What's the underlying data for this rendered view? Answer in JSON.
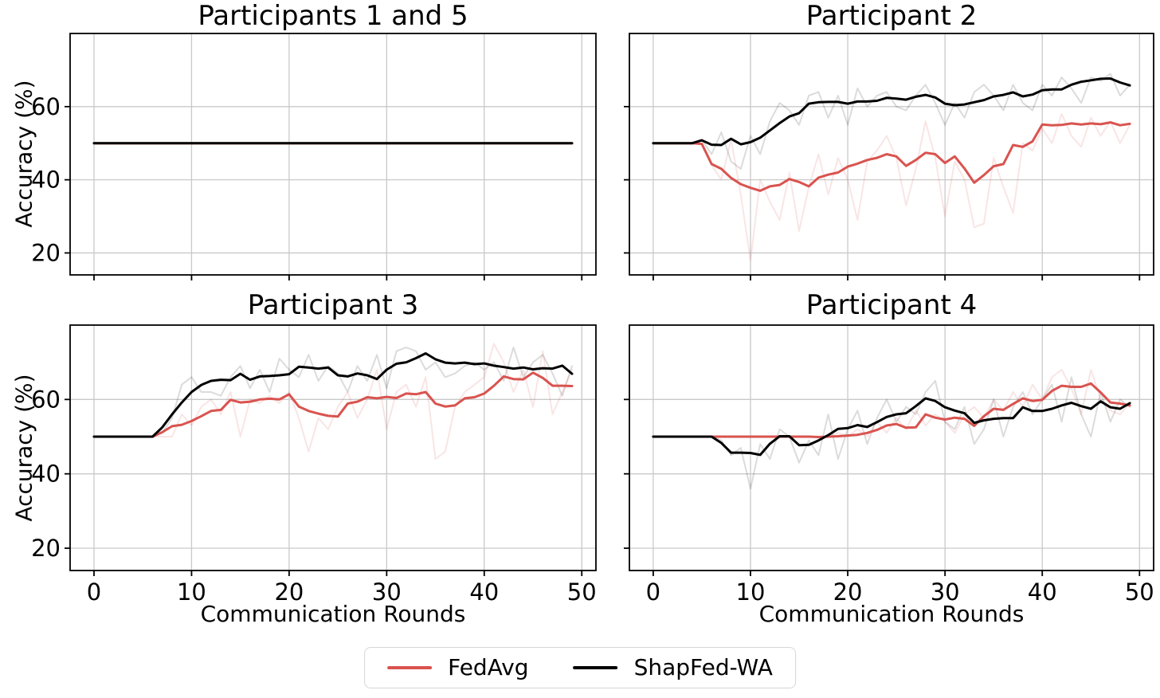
{
  "figure": {
    "background": "#ffffff"
  },
  "style": {
    "grid_color": "#c9c9c9",
    "spine_color": "#000000",
    "tick_color": "#000000",
    "text_color": "#000000",
    "fedavg_color": "#d9534f",
    "shapfed_color": "#000000"
  },
  "axes": {
    "ylabel": "Accuracy (%)",
    "xlabel": "Communication Rounds",
    "xticks": [
      0,
      10,
      20,
      30,
      40,
      50
    ],
    "yticks": [
      20,
      40,
      60
    ],
    "xlim": [
      -2.45,
      51.45
    ],
    "ylim": [
      14,
      80
    ],
    "grid": true
  },
  "legend": {
    "position": "lower center",
    "items": [
      {
        "label": "FedAvg",
        "color": "#d9534f"
      },
      {
        "label": "ShapFed-WA",
        "color": "#000000"
      }
    ]
  },
  "chart_data": [
    {
      "type": "line",
      "title": "Participants 1 and 5",
      "show_x_tick_labels": false,
      "show_y_tick_labels": true,
      "rounds": [
        0,
        1,
        2,
        3,
        4,
        5,
        6,
        7,
        8,
        9,
        10,
        11,
        12,
        13,
        14,
        15,
        16,
        17,
        18,
        19,
        20,
        21,
        22,
        23,
        24,
        25,
        26,
        27,
        28,
        29,
        30,
        31,
        32,
        33,
        34,
        35,
        36,
        37,
        38,
        39,
        40,
        41,
        42,
        43,
        44,
        45,
        46,
        47,
        48,
        49
      ],
      "series": [
        {
          "name": "FedAvg",
          "color": "#d9534f",
          "alpha": 1,
          "width": 3,
          "values": [
            50,
            50,
            50,
            50,
            50,
            50,
            50,
            50,
            50,
            50,
            50,
            50,
            50,
            50,
            50,
            50,
            50,
            50,
            50,
            50,
            50,
            50,
            50,
            50,
            50,
            50,
            50,
            50,
            50,
            50,
            50,
            50,
            50,
            50,
            50,
            50,
            50,
            50,
            50,
            50,
            50,
            50,
            50,
            50,
            50,
            50,
            50,
            50,
            50,
            50
          ]
        },
        {
          "name": "ShapFed-WA",
          "color": "#000000",
          "alpha": 1,
          "width": 3,
          "values": [
            50,
            50,
            50,
            50,
            50,
            50,
            50,
            50,
            50,
            50,
            50,
            50,
            50,
            50,
            50,
            50,
            50,
            50,
            50,
            50,
            50,
            50,
            50,
            50,
            50,
            50,
            50,
            50,
            50,
            50,
            50,
            50,
            50,
            50,
            50,
            50,
            50,
            50,
            50,
            50,
            50,
            50,
            50,
            50,
            50,
            50,
            50,
            50,
            50,
            50
          ]
        }
      ]
    },
    {
      "type": "line",
      "title": "Participant 2",
      "show_x_tick_labels": false,
      "show_y_tick_labels": false,
      "rounds": [
        0,
        1,
        2,
        3,
        4,
        5,
        6,
        7,
        8,
        9,
        10,
        11,
        12,
        13,
        14,
        15,
        16,
        17,
        18,
        19,
        20,
        21,
        22,
        23,
        24,
        25,
        26,
        27,
        28,
        29,
        30,
        31,
        32,
        33,
        34,
        35,
        36,
        37,
        38,
        39,
        40,
        41,
        42,
        43,
        44,
        45,
        46,
        47,
        48,
        49
      ],
      "series": [
        {
          "name": "ShapFed-WA (raw)",
          "color": "#000000",
          "alpha": 0.14,
          "width": 2,
          "values": [
            50,
            50,
            50,
            50,
            50,
            51,
            47,
            53,
            45,
            43,
            52,
            47,
            56,
            61,
            59,
            55,
            63,
            64,
            57,
            63,
            55,
            65,
            60,
            63,
            64,
            60,
            59,
            63,
            66,
            61,
            55,
            61,
            57,
            64,
            66,
            63,
            59,
            66,
            61,
            59,
            66,
            63,
            68,
            65,
            61,
            68,
            67,
            69,
            63,
            66
          ]
        },
        {
          "name": "FedAvg (raw)",
          "color": "#d9534f",
          "alpha": 0.15,
          "width": 2,
          "values": [
            50,
            50,
            50,
            50,
            50,
            50,
            44,
            40,
            51,
            36,
            18,
            40,
            34,
            29,
            42,
            26,
            38,
            47,
            36,
            46,
            40,
            29,
            45,
            48,
            52,
            46,
            33,
            43,
            56,
            46,
            30,
            45,
            40,
            27,
            28,
            46,
            38,
            31,
            50,
            48,
            54,
            50,
            58,
            52,
            49,
            57,
            52,
            56,
            50,
            55
          ]
        },
        {
          "name": "FedAvg",
          "color": "#d9534f",
          "alpha": 1,
          "width": 3,
          "values": [
            50,
            50,
            50,
            50,
            50,
            49.8,
            44.3,
            43,
            40.5,
            38.8,
            37.8,
            37,
            38.2,
            38.6,
            40.2,
            39.4,
            38.2,
            40.6,
            41.4,
            42,
            43.6,
            44.4,
            45.4,
            46,
            47,
            46.4,
            43.8,
            45.4,
            47.4,
            47,
            44.6,
            46.4,
            43.1,
            39.2,
            41.3,
            43.7,
            44.3,
            49.5,
            49,
            50.5,
            55.1,
            54.9,
            55,
            55.4,
            55.1,
            55.4,
            55.2,
            55.7,
            54.9,
            55.3
          ]
        },
        {
          "name": "ShapFed-WA",
          "color": "#000000",
          "alpha": 1,
          "width": 3,
          "values": [
            50,
            50,
            50,
            50,
            50,
            50.8,
            49.6,
            49.5,
            51.2,
            49.7,
            50.3,
            51.5,
            53.5,
            55.5,
            57.3,
            58.2,
            60.8,
            61.2,
            61.3,
            61.3,
            60.8,
            61.4,
            61.4,
            61.6,
            62.4,
            62.2,
            61.9,
            62.7,
            63.2,
            62.5,
            60.8,
            60.4,
            60.6,
            61.2,
            61.8,
            62.8,
            63.2,
            63.9,
            62.8,
            63.3,
            64.5,
            64.7,
            64.7,
            66,
            66.8,
            67.2,
            67.6,
            67.7,
            66.6,
            65.8
          ]
        }
      ]
    },
    {
      "type": "line",
      "title": "Participant 3",
      "show_x_tick_labels": true,
      "show_y_tick_labels": true,
      "rounds": [
        0,
        1,
        2,
        3,
        4,
        5,
        6,
        7,
        8,
        9,
        10,
        11,
        12,
        13,
        14,
        15,
        16,
        17,
        18,
        19,
        20,
        21,
        22,
        23,
        24,
        25,
        26,
        27,
        28,
        29,
        30,
        31,
        32,
        33,
        34,
        35,
        36,
        37,
        38,
        39,
        40,
        41,
        42,
        43,
        44,
        45,
        46,
        47,
        48,
        49
      ],
      "series": [
        {
          "name": "ShapFed-WA (raw)",
          "color": "#000000",
          "alpha": 0.14,
          "width": 2,
          "values": [
            50,
            50,
            50,
            50,
            50,
            50,
            50,
            51,
            55,
            64,
            66,
            62,
            62,
            61,
            66,
            69,
            63,
            68,
            62,
            71,
            68,
            66,
            72,
            65,
            69,
            67,
            62,
            69,
            65,
            72,
            63,
            73,
            74,
            73,
            68,
            70,
            66,
            67,
            69,
            70,
            68,
            70,
            65,
            74,
            66,
            70,
            72,
            67,
            61,
            69
          ]
        },
        {
          "name": "FedAvg (raw)",
          "color": "#d9534f",
          "alpha": 0.15,
          "width": 2,
          "values": [
            50,
            50,
            50,
            50,
            50,
            50,
            50,
            50,
            50,
            56,
            53,
            58,
            60,
            56,
            62,
            50,
            60,
            59,
            61,
            59,
            62,
            55,
            46,
            55,
            52,
            58,
            62,
            55,
            60,
            68,
            52,
            62,
            64,
            58,
            66,
            44,
            46,
            58,
            62,
            64,
            66,
            75,
            70,
            62,
            68,
            58,
            73,
            56,
            62,
            68
          ]
        },
        {
          "name": "FedAvg",
          "color": "#d9534f",
          "alpha": 1,
          "width": 3,
          "values": [
            50,
            50,
            50,
            50,
            50,
            50,
            50,
            51.2,
            52.8,
            53.2,
            54.2,
            55.5,
            56.9,
            57.2,
            59.9,
            59.2,
            59.4,
            60,
            60.2,
            60,
            61.4,
            58.1,
            56.9,
            56.2,
            55.6,
            55.4,
            58.9,
            59.4,
            60.6,
            60.3,
            60.7,
            60.4,
            61.6,
            61.4,
            62,
            58.9,
            58.1,
            58.4,
            60.3,
            60.6,
            61.6,
            63.7,
            66.2,
            65.5,
            65.4,
            67.2,
            65.8,
            63.7,
            63.7,
            63.6
          ]
        },
        {
          "name": "ShapFed-WA",
          "color": "#000000",
          "alpha": 1,
          "width": 3,
          "values": [
            50,
            50,
            50,
            50,
            50,
            50,
            50,
            52.5,
            56,
            59.2,
            62,
            63.9,
            65,
            65.3,
            65.2,
            66.9,
            65.3,
            66.2,
            66.3,
            66.5,
            66.8,
            68.8,
            68.6,
            68.3,
            68.6,
            66.5,
            66.2,
            67,
            66.5,
            65.5,
            68,
            69.6,
            70,
            71.1,
            72.4,
            70.8,
            69.9,
            69.7,
            69.9,
            69.5,
            69.7,
            69.1,
            68.7,
            68.3,
            68.6,
            68.1,
            68.4,
            68.3,
            69.1,
            66.9
          ]
        }
      ]
    },
    {
      "type": "line",
      "title": "Participant 4",
      "show_x_tick_labels": true,
      "show_y_tick_labels": false,
      "rounds": [
        0,
        1,
        2,
        3,
        4,
        5,
        6,
        7,
        8,
        9,
        10,
        11,
        12,
        13,
        14,
        15,
        16,
        17,
        18,
        19,
        20,
        21,
        22,
        23,
        24,
        25,
        26,
        27,
        28,
        29,
        30,
        31,
        32,
        33,
        34,
        35,
        36,
        37,
        38,
        39,
        40,
        41,
        42,
        43,
        44,
        45,
        46,
        47,
        48,
        49
      ],
      "series": [
        {
          "name": "ShapFed-WA (raw)",
          "color": "#000000",
          "alpha": 0.14,
          "width": 2,
          "values": [
            50,
            50,
            50,
            50,
            50,
            50,
            50,
            49,
            45,
            47,
            36,
            48,
            44,
            52,
            50,
            43,
            49,
            45,
            56,
            44,
            52,
            57,
            48,
            55,
            60,
            54,
            58,
            56,
            62,
            65,
            54,
            52,
            58,
            48,
            52,
            60,
            50,
            58,
            62,
            56,
            60,
            64,
            54,
            66,
            56,
            50,
            62,
            54,
            60,
            58
          ]
        },
        {
          "name": "FedAvg (raw)",
          "color": "#d9534f",
          "alpha": 0.15,
          "width": 2,
          "values": [
            50,
            50,
            50,
            50,
            50,
            50,
            50,
            50,
            50,
            50,
            50,
            50,
            50,
            50,
            50,
            50,
            50,
            50,
            50,
            51,
            50,
            52,
            50,
            54,
            51,
            55,
            52,
            57,
            53,
            56,
            54,
            51,
            56,
            58,
            55,
            60,
            57,
            62,
            58,
            64,
            60,
            66,
            68,
            63,
            56,
            68,
            60,
            57,
            56,
            59
          ]
        },
        {
          "name": "FedAvg",
          "color": "#d9534f",
          "alpha": 1,
          "width": 3,
          "values": [
            50,
            50,
            50,
            50,
            50,
            50,
            50,
            50,
            50,
            50,
            50,
            50,
            50,
            50,
            50,
            50,
            50,
            49.9,
            50,
            50.1,
            50.3,
            50.5,
            51,
            51.8,
            53,
            53.4,
            52.4,
            52.5,
            56,
            55.1,
            54.6,
            55.1,
            54.8,
            52.9,
            55.5,
            57.5,
            57.2,
            58.8,
            60.3,
            59.6,
            59.9,
            62.3,
            63.7,
            63.4,
            63.4,
            64.3,
            61.9,
            59.2,
            58.9,
            58.4
          ]
        },
        {
          "name": "ShapFed-WA",
          "color": "#000000",
          "alpha": 1,
          "width": 3,
          "values": [
            50,
            50,
            50,
            50,
            50,
            50,
            50,
            48.3,
            45.7,
            45.7,
            45.6,
            45.1,
            48.1,
            50.1,
            50.1,
            47.7,
            47.8,
            49,
            50.4,
            52.1,
            52.3,
            53.1,
            52.6,
            53.9,
            55.3,
            56,
            56.3,
            58.2,
            60.3,
            59.6,
            57.9,
            57,
            56.3,
            53.7,
            54.4,
            54.8,
            55,
            55,
            57.9,
            56.9,
            56.9,
            57.5,
            58.4,
            59.1,
            58.2,
            57.5,
            59.5,
            57.9,
            57.5,
            59
          ]
        }
      ]
    }
  ]
}
